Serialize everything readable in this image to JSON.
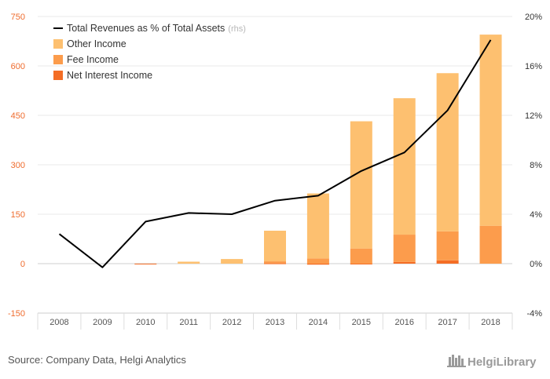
{
  "chart_data": {
    "type": "bar",
    "categories": [
      "2008",
      "2009",
      "2010",
      "2011",
      "2012",
      "2013",
      "2014",
      "2015",
      "2016",
      "2017",
      "2018"
    ],
    "series": [
      {
        "name": "Other Income",
        "kind": "bar",
        "color": "#fdc070",
        "values": [
          0,
          0,
          0,
          6,
          14,
          93,
          197,
          386,
          414,
          480,
          580
        ]
      },
      {
        "name": "Fee Income",
        "kind": "bar",
        "color": "#fc9c4c",
        "values": [
          0,
          0,
          0,
          0,
          0,
          6,
          16,
          46,
          83,
          88,
          115
        ]
      },
      {
        "name": "Net Interest Income",
        "kind": "bar",
        "color": "#f46d25",
        "values": [
          0,
          0,
          -1,
          0,
          0,
          1,
          -3,
          -1,
          5,
          10,
          0
        ]
      },
      {
        "name": "Total Revenues as % of Total Assets",
        "suffix": "(rhs)",
        "kind": "line",
        "axis": "right",
        "color": "#000000",
        "values": [
          2.4,
          -0.3,
          3.4,
          4.1,
          4.0,
          5.1,
          5.5,
          7.5,
          9.0,
          12.4,
          18.1
        ]
      }
    ],
    "ylim": [
      -150,
      750
    ],
    "yticks": [
      "-150",
      "0",
      "150",
      "300",
      "450",
      "600",
      "750"
    ],
    "y2lim": [
      -4,
      20
    ],
    "y2ticks": [
      "-4%",
      "0%",
      "4%",
      "8%",
      "12%",
      "16%",
      "20%"
    ],
    "legend_position": "top-left"
  },
  "footer": {
    "source": "Source: Company Data, Helgi Analytics",
    "brand": "HelgiLibrary"
  }
}
